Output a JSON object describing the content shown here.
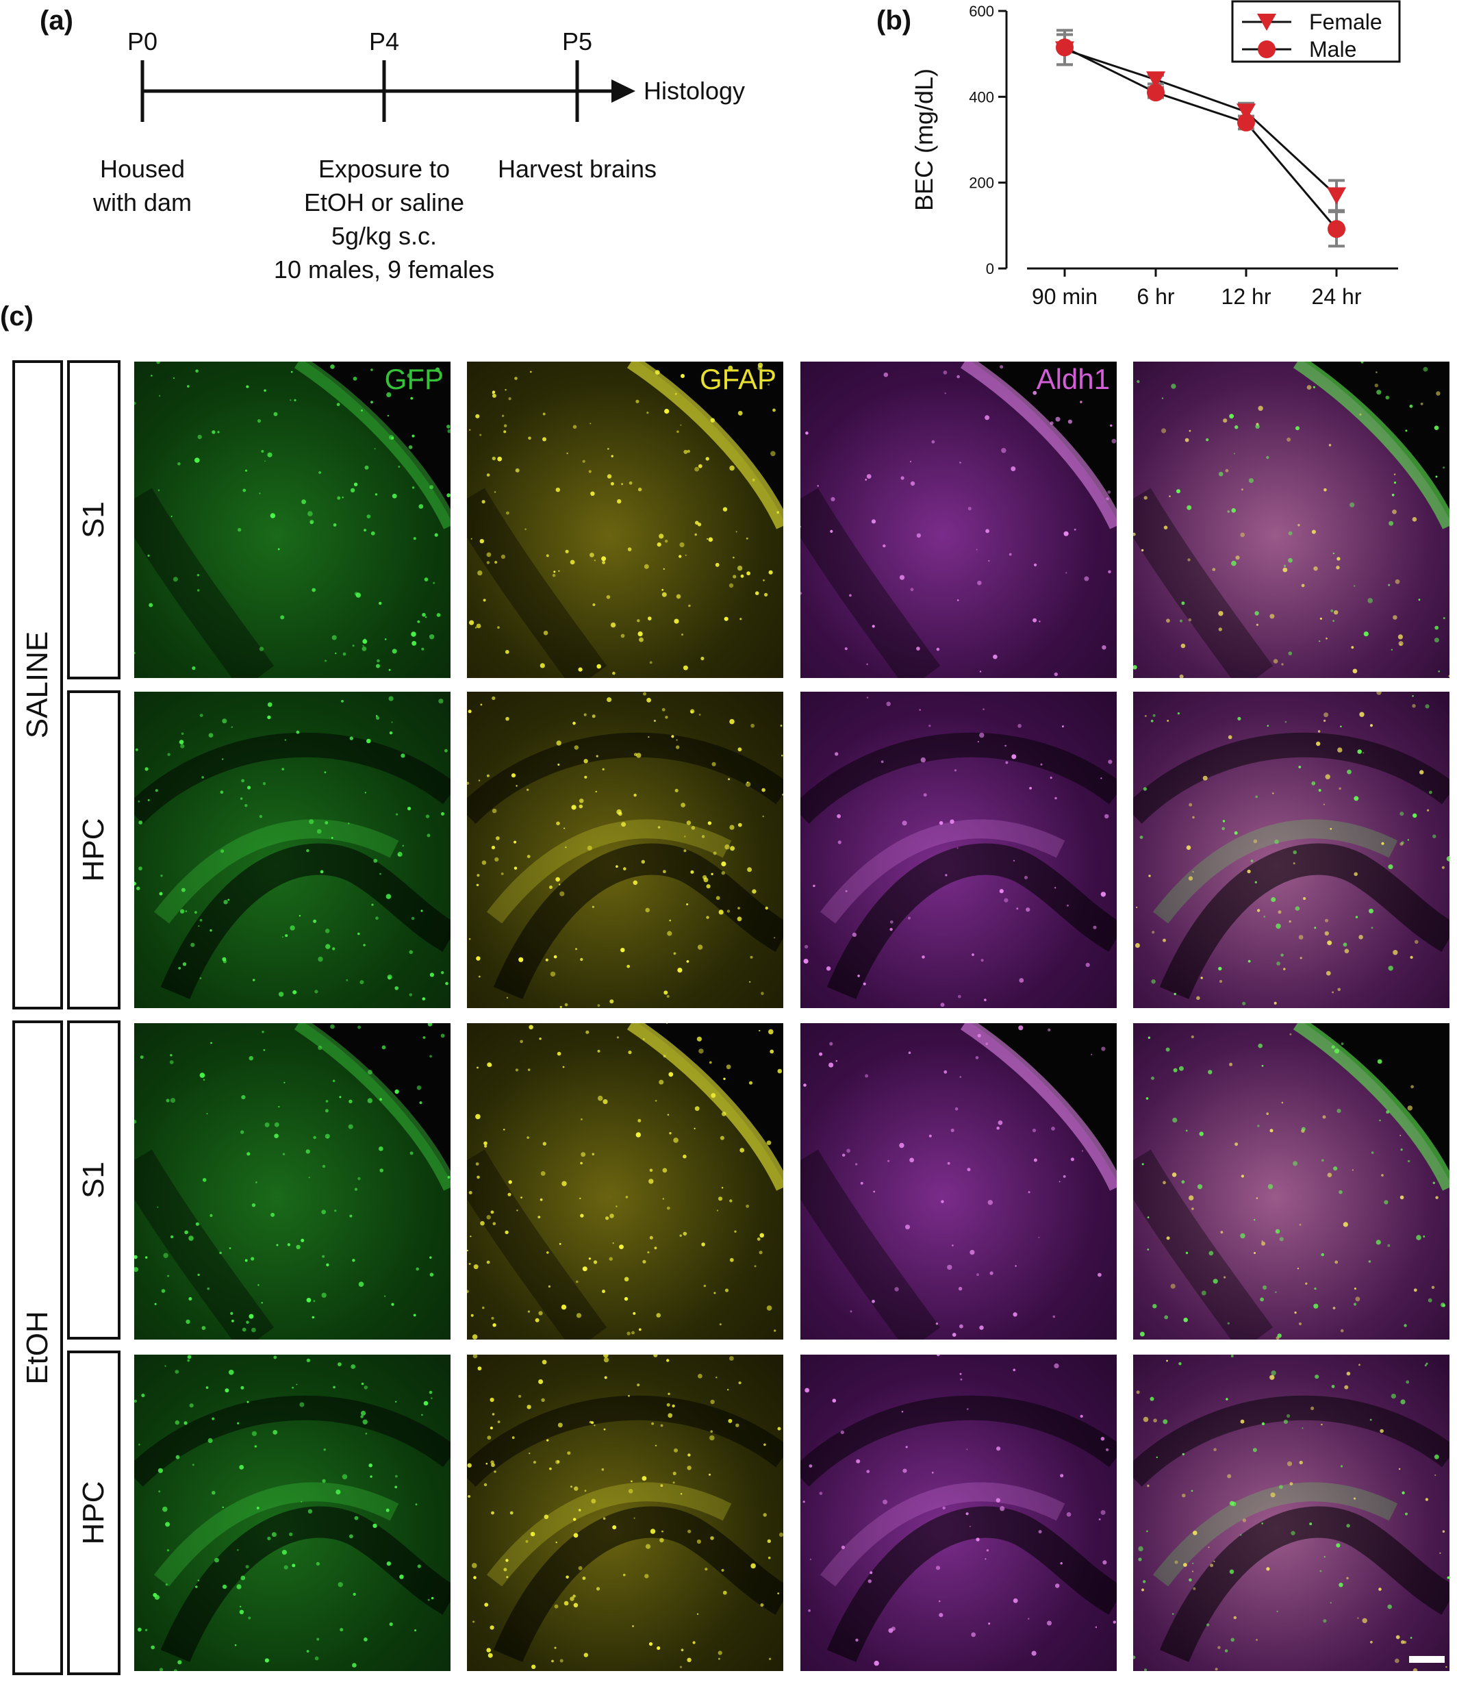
{
  "panel_labels": {
    "a": "(a)",
    "b": "(b)",
    "c": "(c)"
  },
  "timeline": {
    "points": [
      {
        "label": "P0",
        "below": [
          "Housed",
          "with dam"
        ]
      },
      {
        "label": "P4",
        "below": [
          "Exposure to",
          "EtOH or saline",
          "5g/kg s.c.",
          "10 males, 9 females"
        ]
      },
      {
        "label": "P5",
        "below": [
          "Harvest brains"
        ]
      }
    ],
    "arrow_label": "Histology"
  },
  "chart_data": {
    "type": "line",
    "categories": [
      "90 min",
      "6 hr",
      "12 hr",
      "24 hr"
    ],
    "ylabel": "BEC (mg/dL)",
    "xlabel": "",
    "ylim": [
      0,
      600
    ],
    "yticks": [
      0,
      200,
      400,
      600
    ],
    "legend_position": "top-right",
    "series": [
      {
        "name": "Female",
        "marker": "triangle-down",
        "values": [
          510,
          440,
          365,
          170
        ],
        "error": [
          35,
          10,
          20,
          35
        ]
      },
      {
        "name": "Male",
        "marker": "circle",
        "values": [
          515,
          410,
          340,
          92
        ],
        "error": [
          40,
          12,
          15,
          40
        ]
      }
    ],
    "marker_color": "#d7262c",
    "line_color": "#111111",
    "error_color": "#808080"
  },
  "figure_c": {
    "conditions": [
      {
        "label": "SALINE",
        "regions": [
          "S1",
          "HPC"
        ]
      },
      {
        "label": "EtOH",
        "regions": [
          "S1",
          "HPC"
        ]
      }
    ],
    "channels": [
      {
        "label": "GFP",
        "color": "#35c23a"
      },
      {
        "label": "GFAP",
        "color": "#e8e030"
      },
      {
        "label": "Aldh1",
        "color": "#d35fd8"
      },
      {
        "label": "",
        "color": ""
      }
    ]
  }
}
